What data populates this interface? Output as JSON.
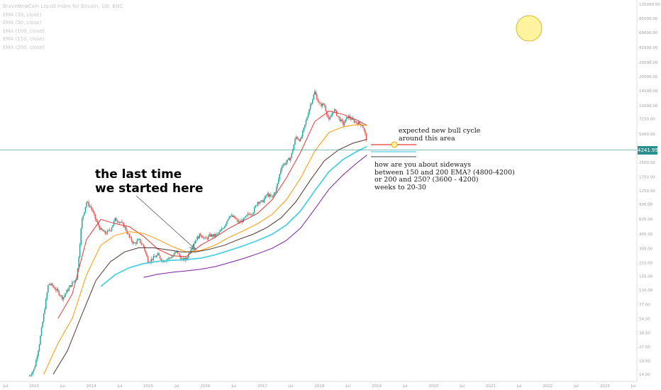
{
  "legend": {
    "title": "BraveNewCoin Liquid Index for Bitcoin, 1W, BNC",
    "items": [
      "EMA (20, close)",
      "EMA (50, close)",
      "EMA (100, close)",
      "EMA (150, close)",
      "EMA (200, close)"
    ]
  },
  "annotations": {
    "last_time_line1": "the last time",
    "last_time_line2": "we started here",
    "bull_line1": "expected new bull cycle",
    "bull_line2": "around this area",
    "sideways_line1": "how are you about sideways",
    "sideways_line2": "between 150 and 200 EMA? (4800-4200)",
    "sideways_line3": "or 200 and 250? (3600 - 4200)",
    "sideways_line4": "weeks to 20-30"
  },
  "last_price_label": "4241.95",
  "colors": {
    "candle_up": "#26a69a",
    "candle_down": "#ef5350",
    "ema20": "#e53935",
    "ema50": "#ff9800",
    "ema100": "#4e342e",
    "ema150": "#4dd0e1",
    "ema200": "#7b1fa2",
    "last_price_line": "#2a8f8f",
    "sun": "#fff3a0"
  },
  "chart_data": {
    "type": "line",
    "title": "BraveNewCoin Liquid Index for Bitcoin, 1W, BNC",
    "xlabel": "",
    "ylabel": "",
    "scale": "log",
    "ylim": [
      13.5,
      120000
    ],
    "xlim": [
      "2012-07",
      "2023-07"
    ],
    "x_ticks": [
      "Jul",
      "2013",
      "Jul",
      "2014",
      "Jul",
      "2015",
      "Jul",
      "2016",
      "Jul",
      "2017",
      "Jul",
      "2018",
      "Jul",
      "2019",
      "Jul",
      "2020",
      "Jul",
      "2021",
      "Jul",
      "2022",
      "Jul",
      "2023",
      "Jul"
    ],
    "y_ticks": [
      14.0,
      19.5,
      27.5,
      38.5,
      54.5,
      77.0,
      110.0,
      155.0,
      215.0,
      305.0,
      435.0,
      625.0,
      900.0,
      1250.0,
      1750.0,
      2500.0,
      3500.0,
      5000.0,
      7250.0,
      10000.0,
      14500.0,
      20500.0,
      29000.0,
      41500.0,
      60000.0,
      85000.0,
      120000.0
    ],
    "price_series": [
      {
        "date": "2012-12",
        "price": 13.5
      },
      {
        "date": "2013-01",
        "price": 16
      },
      {
        "date": "2013-02",
        "price": 28
      },
      {
        "date": "2013-03",
        "price": 60
      },
      {
        "date": "2013-04",
        "price": 130
      },
      {
        "date": "2013-05",
        "price": 120
      },
      {
        "date": "2013-06",
        "price": 105
      },
      {
        "date": "2013-07",
        "price": 90
      },
      {
        "date": "2013-08",
        "price": 110
      },
      {
        "date": "2013-09",
        "price": 130
      },
      {
        "date": "2013-10",
        "price": 150
      },
      {
        "date": "2013-11",
        "price": 600
      },
      {
        "date": "2013-12",
        "price": 950
      },
      {
        "date": "2014-01",
        "price": 820
      },
      {
        "date": "2014-02",
        "price": 600
      },
      {
        "date": "2014-03",
        "price": 480
      },
      {
        "date": "2014-04",
        "price": 440
      },
      {
        "date": "2014-05",
        "price": 480
      },
      {
        "date": "2014-06",
        "price": 620
      },
      {
        "date": "2014-07",
        "price": 590
      },
      {
        "date": "2014-08",
        "price": 520
      },
      {
        "date": "2014-09",
        "price": 400
      },
      {
        "date": "2014-10",
        "price": 340
      },
      {
        "date": "2014-11",
        "price": 375
      },
      {
        "date": "2014-12",
        "price": 320
      },
      {
        "date": "2015-01",
        "price": 220
      },
      {
        "date": "2015-02",
        "price": 240
      },
      {
        "date": "2015-03",
        "price": 260
      },
      {
        "date": "2015-04",
        "price": 225
      },
      {
        "date": "2015-05",
        "price": 235
      },
      {
        "date": "2015-06",
        "price": 250
      },
      {
        "date": "2015-07",
        "price": 285
      },
      {
        "date": "2015-08",
        "price": 230
      },
      {
        "date": "2015-09",
        "price": 235
      },
      {
        "date": "2015-10",
        "price": 310
      },
      {
        "date": "2015-11",
        "price": 380
      },
      {
        "date": "2015-12",
        "price": 430
      },
      {
        "date": "2016-01",
        "price": 380
      },
      {
        "date": "2016-02",
        "price": 420
      },
      {
        "date": "2016-03",
        "price": 415
      },
      {
        "date": "2016-04",
        "price": 450
      },
      {
        "date": "2016-05",
        "price": 530
      },
      {
        "date": "2016-06",
        "price": 680
      },
      {
        "date": "2016-07",
        "price": 650
      },
      {
        "date": "2016-08",
        "price": 575
      },
      {
        "date": "2016-09",
        "price": 610
      },
      {
        "date": "2016-10",
        "price": 700
      },
      {
        "date": "2016-11",
        "price": 740
      },
      {
        "date": "2016-12",
        "price": 960
      },
      {
        "date": "2017-01",
        "price": 950
      },
      {
        "date": "2017-02",
        "price": 1150
      },
      {
        "date": "2017-03",
        "price": 1050
      },
      {
        "date": "2017-04",
        "price": 1350
      },
      {
        "date": "2017-05",
        "price": 2300
      },
      {
        "date": "2017-06",
        "price": 2500
      },
      {
        "date": "2017-07",
        "price": 2850
      },
      {
        "date": "2017-08",
        "price": 4700
      },
      {
        "date": "2017-09",
        "price": 4300
      },
      {
        "date": "2017-10",
        "price": 6400
      },
      {
        "date": "2017-11",
        "price": 10000
      },
      {
        "date": "2017-12",
        "price": 14000
      },
      {
        "date": "2018-01",
        "price": 10200
      },
      {
        "date": "2018-02",
        "price": 10300
      },
      {
        "date": "2018-03",
        "price": 6900
      },
      {
        "date": "2018-04",
        "price": 9200
      },
      {
        "date": "2018-05",
        "price": 7500
      },
      {
        "date": "2018-06",
        "price": 6350
      },
      {
        "date": "2018-07",
        "price": 7750
      },
      {
        "date": "2018-08",
        "price": 7000
      },
      {
        "date": "2018-09",
        "price": 6600
      },
      {
        "date": "2018-10",
        "price": 6300
      },
      {
        "date": "2018-11",
        "price": 4242
      }
    ],
    "series": [
      {
        "name": "EMA (20, close)",
        "points": [
          {
            "date": "2013-06",
            "value": 55
          },
          {
            "date": "2013-09",
            "value": 100
          },
          {
            "date": "2013-12",
            "value": 380
          },
          {
            "date": "2014-03",
            "value": 620
          },
          {
            "date": "2014-06",
            "value": 560
          },
          {
            "date": "2014-09",
            "value": 520
          },
          {
            "date": "2014-12",
            "value": 410
          },
          {
            "date": "2015-03",
            "value": 300
          },
          {
            "date": "2015-06",
            "value": 255
          },
          {
            "date": "2015-09",
            "value": 250
          },
          {
            "date": "2015-12",
            "value": 330
          },
          {
            "date": "2016-03",
            "value": 400
          },
          {
            "date": "2016-06",
            "value": 500
          },
          {
            "date": "2016-09",
            "value": 600
          },
          {
            "date": "2016-12",
            "value": 720
          },
          {
            "date": "2017-03",
            "value": 1000
          },
          {
            "date": "2017-06",
            "value": 1700
          },
          {
            "date": "2017-09",
            "value": 3200
          },
          {
            "date": "2017-12",
            "value": 6800
          },
          {
            "date": "2018-03",
            "value": 8800
          },
          {
            "date": "2018-06",
            "value": 8100
          },
          {
            "date": "2018-09",
            "value": 7000
          },
          {
            "date": "2018-11",
            "value": 6200
          }
        ]
      },
      {
        "name": "EMA (50, close)",
        "points": [
          {
            "date": "2013-03",
            "value": 14
          },
          {
            "date": "2013-06",
            "value": 30
          },
          {
            "date": "2013-09",
            "value": 55
          },
          {
            "date": "2013-12",
            "value": 160
          },
          {
            "date": "2014-03",
            "value": 330
          },
          {
            "date": "2014-06",
            "value": 420
          },
          {
            "date": "2014-09",
            "value": 460
          },
          {
            "date": "2014-12",
            "value": 440
          },
          {
            "date": "2015-03",
            "value": 380
          },
          {
            "date": "2015-06",
            "value": 320
          },
          {
            "date": "2015-09",
            "value": 280
          },
          {
            "date": "2015-12",
            "value": 290
          },
          {
            "date": "2016-03",
            "value": 330
          },
          {
            "date": "2016-06",
            "value": 400
          },
          {
            "date": "2016-09",
            "value": 470
          },
          {
            "date": "2016-12",
            "value": 560
          },
          {
            "date": "2017-03",
            "value": 700
          },
          {
            "date": "2017-06",
            "value": 1000
          },
          {
            "date": "2017-09",
            "value": 1700
          },
          {
            "date": "2017-12",
            "value": 3300
          },
          {
            "date": "2018-03",
            "value": 5200
          },
          {
            "date": "2018-06",
            "value": 6000
          },
          {
            "date": "2018-09",
            "value": 6300
          },
          {
            "date": "2018-11",
            "value": 6200
          }
        ]
      },
      {
        "name": "EMA (100, close)",
        "points": [
          {
            "date": "2013-05",
            "value": 14
          },
          {
            "date": "2013-08",
            "value": 25
          },
          {
            "date": "2013-11",
            "value": 60
          },
          {
            "date": "2014-02",
            "value": 140
          },
          {
            "date": "2014-05",
            "value": 220
          },
          {
            "date": "2014-08",
            "value": 280
          },
          {
            "date": "2014-11",
            "value": 310
          },
          {
            "date": "2015-02",
            "value": 310
          },
          {
            "date": "2015-05",
            "value": 295
          },
          {
            "date": "2015-08",
            "value": 280
          },
          {
            "date": "2015-11",
            "value": 280
          },
          {
            "date": "2016-02",
            "value": 300
          },
          {
            "date": "2016-05",
            "value": 330
          },
          {
            "date": "2016-08",
            "value": 380
          },
          {
            "date": "2016-11",
            "value": 430
          },
          {
            "date": "2017-02",
            "value": 510
          },
          {
            "date": "2017-05",
            "value": 650
          },
          {
            "date": "2017-08",
            "value": 950
          },
          {
            "date": "2017-11",
            "value": 1600
          },
          {
            "date": "2018-02",
            "value": 2600
          },
          {
            "date": "2018-05",
            "value": 3400
          },
          {
            "date": "2018-08",
            "value": 4000
          },
          {
            "date": "2018-11",
            "value": 4400
          }
        ]
      },
      {
        "name": "EMA (150, close)",
        "points": [
          {
            "date": "2014-03",
            "value": 120
          },
          {
            "date": "2014-06",
            "value": 160
          },
          {
            "date": "2014-09",
            "value": 190
          },
          {
            "date": "2014-12",
            "value": 210
          },
          {
            "date": "2015-03",
            "value": 222
          },
          {
            "date": "2015-06",
            "value": 228
          },
          {
            "date": "2015-09",
            "value": 232
          },
          {
            "date": "2015-12",
            "value": 240
          },
          {
            "date": "2016-03",
            "value": 260
          },
          {
            "date": "2016-06",
            "value": 290
          },
          {
            "date": "2016-09",
            "value": 325
          },
          {
            "date": "2016-12",
            "value": 370
          },
          {
            "date": "2017-03",
            "value": 430
          },
          {
            "date": "2017-06",
            "value": 540
          },
          {
            "date": "2017-09",
            "value": 760
          },
          {
            "date": "2017-12",
            "value": 1250
          },
          {
            "date": "2018-03",
            "value": 2000
          },
          {
            "date": "2018-06",
            "value": 2700
          },
          {
            "date": "2018-09",
            "value": 3300
          },
          {
            "date": "2018-11",
            "value": 3700
          }
        ]
      },
      {
        "name": "EMA (200, close)",
        "points": [
          {
            "date": "2014-12",
            "value": 150
          },
          {
            "date": "2015-03",
            "value": 162
          },
          {
            "date": "2015-06",
            "value": 170
          },
          {
            "date": "2015-09",
            "value": 176
          },
          {
            "date": "2015-12",
            "value": 183
          },
          {
            "date": "2016-03",
            "value": 195
          },
          {
            "date": "2016-06",
            "value": 215
          },
          {
            "date": "2016-09",
            "value": 238
          },
          {
            "date": "2016-12",
            "value": 268
          },
          {
            "date": "2017-03",
            "value": 305
          },
          {
            "date": "2017-06",
            "value": 370
          },
          {
            "date": "2017-09",
            "value": 500
          },
          {
            "date": "2017-12",
            "value": 800
          },
          {
            "date": "2018-03",
            "value": 1300
          },
          {
            "date": "2018-06",
            "value": 1850
          },
          {
            "date": "2018-09",
            "value": 2500
          },
          {
            "date": "2018-11",
            "value": 3000
          }
        ]
      }
    ],
    "last_price": 4241.95,
    "grid": false,
    "legend_position": "top-left"
  }
}
